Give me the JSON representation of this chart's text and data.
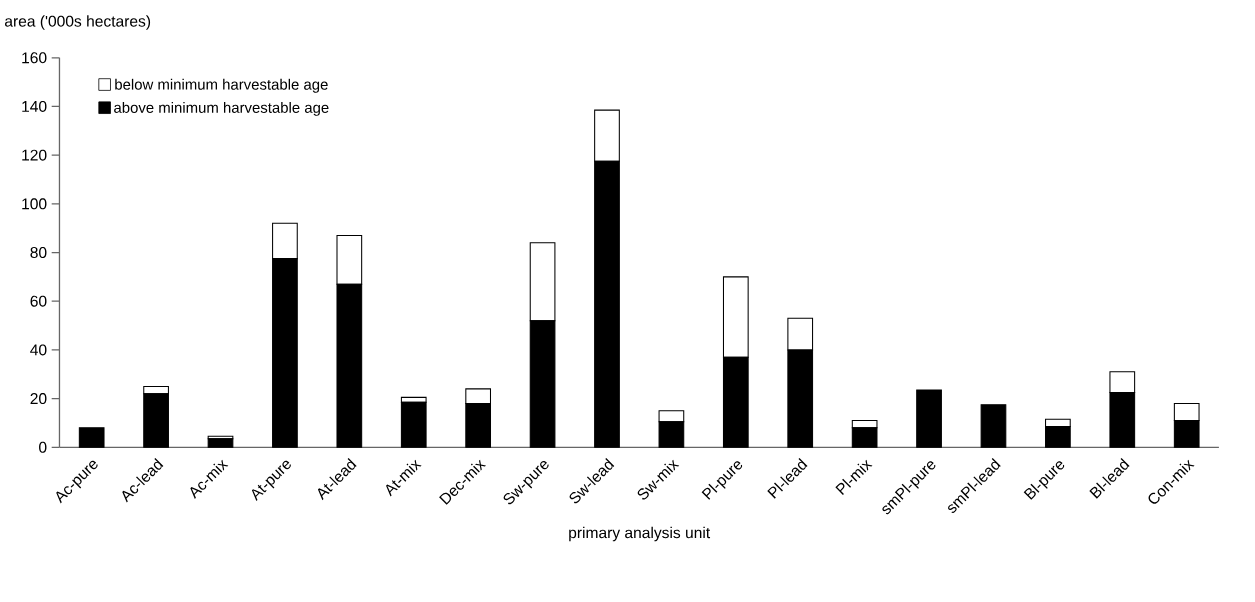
{
  "chart_data": {
    "type": "bar",
    "stacked": true,
    "xlabel": "primary analysis unit",
    "ylabel": "area ('000s hectares)",
    "categories": [
      "Ac-pure",
      "Ac-lead",
      "Ac-mix",
      "At-pure",
      "At-lead",
      "At-mix",
      "Dec-mix",
      "Sw-pure",
      "Sw-lead",
      "Sw-mix",
      "Pl-pure",
      "Pl-lead",
      "Pl-mix",
      "smPl-pure",
      "smPl-lead",
      "Bl-pure",
      "Bl-lead",
      "Con-mix"
    ],
    "series": [
      {
        "name": "above minimum harvestable age",
        "color": "#000000",
        "values": [
          8,
          22,
          3.5,
          77.5,
          67,
          18.5,
          18,
          52,
          117.5,
          10.5,
          37,
          40,
          8,
          23.5,
          17.5,
          8.5,
          22.5,
          11
        ]
      },
      {
        "name": "below minimum harvestable age",
        "color": "#ffffff",
        "values": [
          0,
          3,
          1,
          14.5,
          20,
          2,
          6,
          32,
          21,
          4.5,
          33,
          13,
          3,
          0,
          0,
          3,
          8.5,
          7
        ]
      }
    ],
    "ylim": [
      0,
      160
    ],
    "yticks": [
      0,
      20,
      40,
      60,
      80,
      100,
      120,
      140,
      160
    ],
    "legend": "top left"
  }
}
